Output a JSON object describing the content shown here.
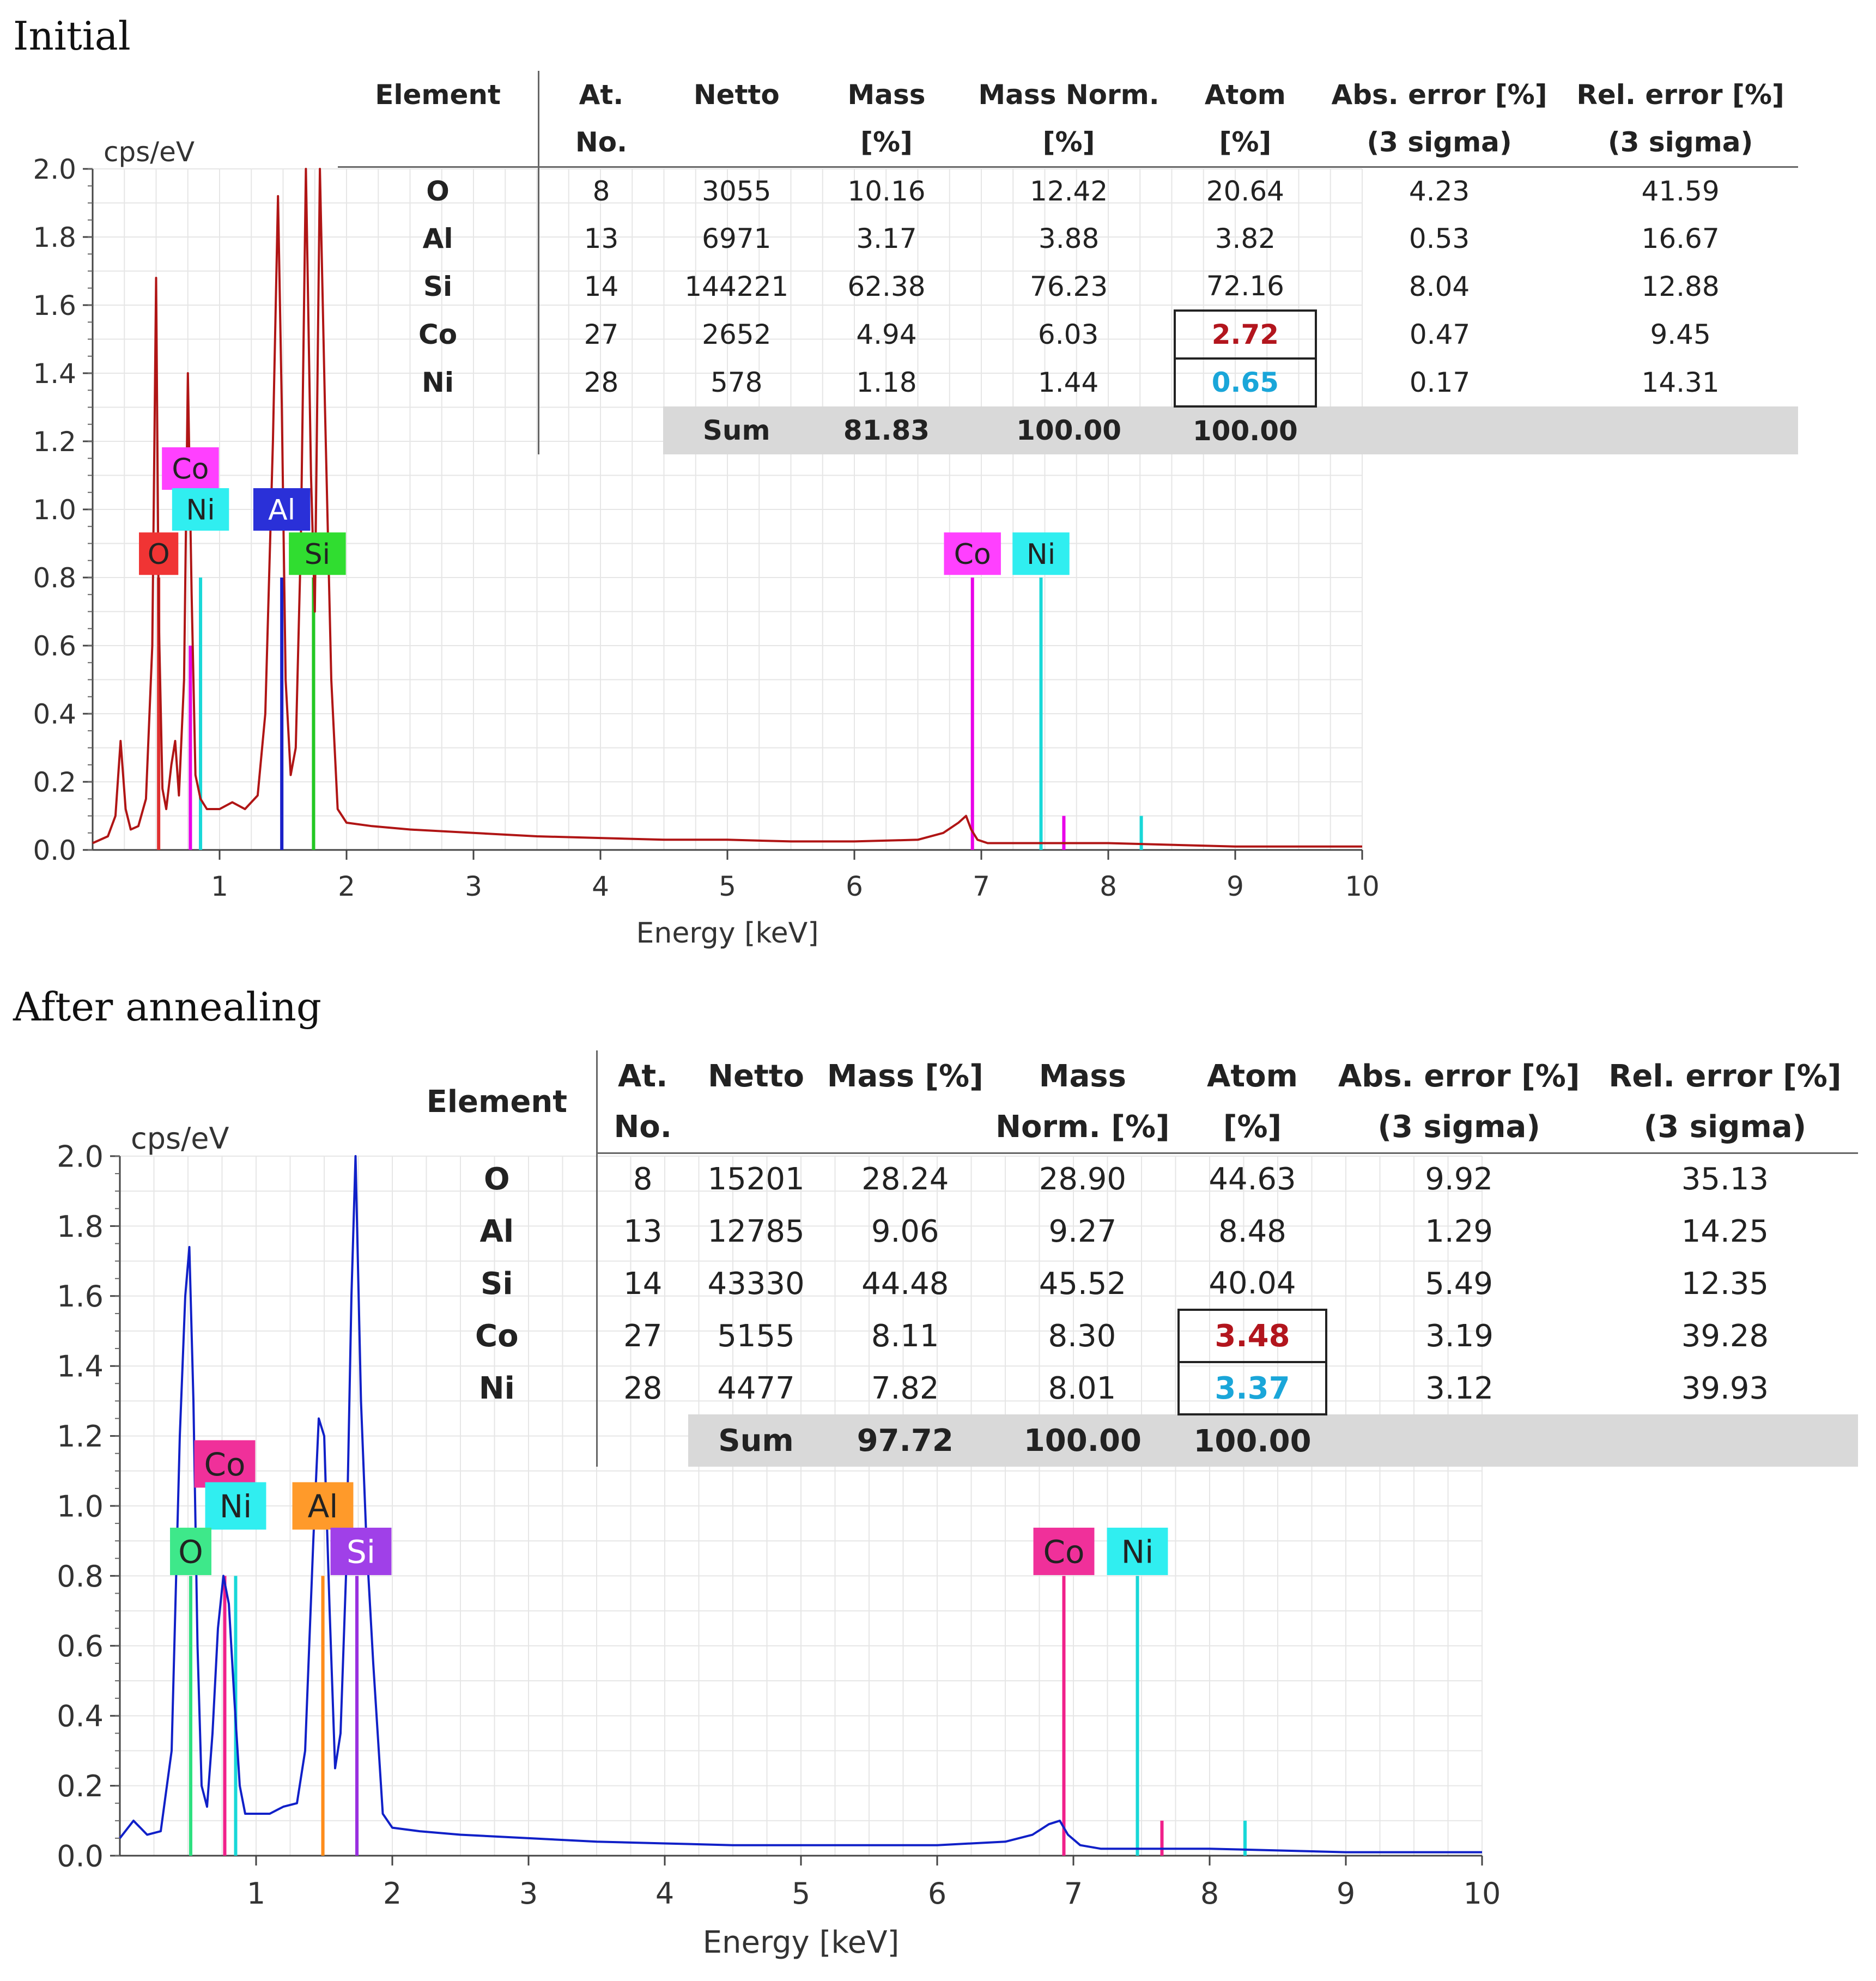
{
  "colors": {
    "atom_co_highlight": "#b2151d",
    "atom_ni_highlight": "#1aa6d9",
    "initial_spectrum": "#b01515",
    "annealed_spectrum": "#1020c8"
  },
  "panels": [
    {
      "title": "Initial",
      "table": {
        "headers": {
          "element": "Element",
          "atno": [
            "At.",
            "No."
          ],
          "netto": "Netto",
          "mass": [
            "Mass",
            "[%]"
          ],
          "massnorm": [
            "Mass Norm.",
            "[%]"
          ],
          "atom": [
            "Atom",
            "[%]"
          ],
          "abserr": [
            "Abs. error [%]",
            "(3 sigma)"
          ],
          "relerr": [
            "Rel. error [%]",
            "(3 sigma)"
          ]
        },
        "rows": [
          {
            "element": "O",
            "atno": "8",
            "netto": "3055",
            "mass": "10.16",
            "massnorm": "12.42",
            "atom": "20.64",
            "abserr": "4.23",
            "relerr": "41.59"
          },
          {
            "element": "Al",
            "atno": "13",
            "netto": "6971",
            "mass": "3.17",
            "massnorm": "3.88",
            "atom": "3.82",
            "abserr": "0.53",
            "relerr": "16.67"
          },
          {
            "element": "Si",
            "atno": "14",
            "netto": "144221",
            "mass": "62.38",
            "massnorm": "76.23",
            "atom": "72.16",
            "abserr": "8.04",
            "relerr": "12.88"
          },
          {
            "element": "Co",
            "atno": "27",
            "netto": "2652",
            "mass": "4.94",
            "massnorm": "6.03",
            "atom": "2.72",
            "abserr": "0.47",
            "relerr": "9.45"
          },
          {
            "element": "Ni",
            "atno": "28",
            "netto": "578",
            "mass": "1.18",
            "massnorm": "1.44",
            "atom": "0.65",
            "abserr": "0.17",
            "relerr": "14.31"
          }
        ],
        "sum": {
          "label": "Sum",
          "mass": "81.83",
          "massnorm": "100.00",
          "atom": "100.00"
        }
      }
    },
    {
      "title": "After annealing",
      "table": {
        "headers": {
          "element": "Element",
          "atno": [
            "At.",
            "No."
          ],
          "netto": "Netto",
          "mass": [
            "Mass [%]",
            ""
          ],
          "massnorm": [
            "Mass",
            "Norm. [%]"
          ],
          "atom": [
            "Atom",
            "[%]"
          ],
          "abserr": [
            "Abs. error [%]",
            "(3 sigma)"
          ],
          "relerr": [
            "Rel. error [%]",
            "(3 sigma)"
          ]
        },
        "rows": [
          {
            "element": "O",
            "atno": "8",
            "netto": "15201",
            "mass": "28.24",
            "massnorm": "28.90",
            "atom": "44.63",
            "abserr": "9.92",
            "relerr": "35.13"
          },
          {
            "element": "Al",
            "atno": "13",
            "netto": "12785",
            "mass": "9.06",
            "massnorm": "9.27",
            "atom": "8.48",
            "abserr": "1.29",
            "relerr": "14.25"
          },
          {
            "element": "Si",
            "atno": "14",
            "netto": "43330",
            "mass": "44.48",
            "massnorm": "45.52",
            "atom": "40.04",
            "abserr": "5.49",
            "relerr": "12.35"
          },
          {
            "element": "Co",
            "atno": "27",
            "netto": "5155",
            "mass": "8.11",
            "massnorm": "8.30",
            "atom": "3.48",
            "abserr": "3.19",
            "relerr": "39.28"
          },
          {
            "element": "Ni",
            "atno": "28",
            "netto": "4477",
            "mass": "7.82",
            "massnorm": "8.01",
            "atom": "3.37",
            "abserr": "3.12",
            "relerr": "39.93"
          }
        ],
        "sum": {
          "label": "Sum",
          "mass": "97.72",
          "massnorm": "100.00",
          "atom": "100.00"
        }
      }
    }
  ],
  "chart_data": [
    {
      "type": "line",
      "title": "Initial",
      "xlabel": "Energy [keV]",
      "ylabel": "cps/eV",
      "xlim": [
        0,
        10
      ],
      "ylim": [
        0,
        2.0
      ],
      "xticks": [
        1,
        2,
        3,
        4,
        5,
        6,
        7,
        8,
        9,
        10
      ],
      "yticks": [
        "0.0",
        "0.2",
        "0.4",
        "0.6",
        "0.8",
        "1.0",
        "1.2",
        "1.4",
        "1.6",
        "1.8",
        "2.0"
      ],
      "grid": true,
      "series": [
        {
          "name": "spectrum",
          "color": "#b01515",
          "x": [
            0.0,
            0.12,
            0.18,
            0.22,
            0.26,
            0.3,
            0.36,
            0.42,
            0.47,
            0.5,
            0.52,
            0.55,
            0.58,
            0.62,
            0.65,
            0.68,
            0.72,
            0.75,
            0.78,
            0.81,
            0.85,
            0.9,
            0.95,
            1.0,
            1.1,
            1.2,
            1.3,
            1.36,
            1.42,
            1.46,
            1.49,
            1.52,
            1.56,
            1.6,
            1.64,
            1.68,
            1.72,
            1.75,
            1.79,
            1.83,
            1.88,
            1.93,
            2.0,
            2.2,
            2.5,
            3.0,
            3.5,
            4.0,
            4.5,
            5.0,
            5.5,
            6.0,
            6.5,
            6.7,
            6.82,
            6.88,
            6.92,
            6.97,
            7.05,
            7.2,
            7.6,
            8.0,
            9.0,
            10.0
          ],
          "y": [
            0.02,
            0.04,
            0.1,
            0.32,
            0.12,
            0.06,
            0.07,
            0.15,
            0.6,
            1.68,
            0.7,
            0.18,
            0.12,
            0.25,
            0.32,
            0.16,
            0.5,
            1.4,
            0.75,
            0.22,
            0.15,
            0.12,
            0.12,
            0.12,
            0.14,
            0.12,
            0.16,
            0.4,
            1.2,
            1.92,
            1.3,
            0.5,
            0.22,
            0.3,
            0.9,
            2.0,
            1.1,
            0.7,
            2.0,
            1.3,
            0.5,
            0.12,
            0.08,
            0.07,
            0.06,
            0.05,
            0.04,
            0.035,
            0.03,
            0.03,
            0.025,
            0.025,
            0.03,
            0.05,
            0.08,
            0.1,
            0.06,
            0.03,
            0.02,
            0.02,
            0.02,
            0.02,
            0.01,
            0.01
          ]
        },
        {
          "name": "O",
          "color": "#e03030",
          "lines": [
            [
              0.52,
              0.8
            ]
          ]
        },
        {
          "name": "Co",
          "color": "#e800e8",
          "lines": [
            [
              0.77,
              0.6
            ],
            [
              6.93,
              0.8
            ],
            [
              7.65,
              0.1
            ]
          ]
        },
        {
          "name": "Ni",
          "color": "#18d8d8",
          "lines": [
            [
              0.85,
              0.8
            ],
            [
              7.47,
              0.8
            ],
            [
              8.26,
              0.1
            ]
          ]
        },
        {
          "name": "Al",
          "color": "#1a20c8",
          "lines": [
            [
              1.49,
              0.8
            ]
          ]
        },
        {
          "name": "Si",
          "color": "#24c824",
          "lines": [
            [
              1.74,
              0.8
            ]
          ]
        }
      ],
      "labels": [
        {
          "text": "Co",
          "x": 0.77,
          "y": 1.12,
          "color": "#ff40ff",
          "ink": "#222"
        },
        {
          "text": "Ni",
          "x": 0.85,
          "y": 1.0,
          "color": "#30eef0",
          "ink": "#222"
        },
        {
          "text": "O",
          "x": 0.52,
          "y": 0.87,
          "color": "#f03434",
          "ink": "#222"
        },
        {
          "text": "Al",
          "x": 1.49,
          "y": 1.0,
          "color": "#2a30d8",
          "ink": "#ffffff"
        },
        {
          "text": "Si",
          "x": 1.77,
          "y": 0.87,
          "color": "#30dd30",
          "ink": "#222"
        },
        {
          "text": "Co",
          "x": 6.93,
          "y": 0.87,
          "color": "#ff40ff",
          "ink": "#222"
        },
        {
          "text": "Ni",
          "x": 7.47,
          "y": 0.87,
          "color": "#30eef0",
          "ink": "#222"
        }
      ]
    },
    {
      "type": "line",
      "title": "After annealing",
      "xlabel": "Energy [keV]",
      "ylabel": "cps/eV",
      "xlim": [
        0,
        10
      ],
      "ylim": [
        0,
        2.0
      ],
      "xticks": [
        1,
        2,
        3,
        4,
        5,
        6,
        7,
        8,
        9,
        10
      ],
      "yticks": [
        "0.0",
        "0.2",
        "0.4",
        "0.6",
        "0.8",
        "1.0",
        "1.2",
        "1.4",
        "1.6",
        "1.8",
        "2.0"
      ],
      "grid": true,
      "series": [
        {
          "name": "spectrum",
          "color": "#1020c8",
          "x": [
            0.0,
            0.1,
            0.2,
            0.3,
            0.38,
            0.44,
            0.48,
            0.51,
            0.54,
            0.57,
            0.6,
            0.64,
            0.68,
            0.72,
            0.76,
            0.8,
            0.84,
            0.88,
            0.92,
            1.0,
            1.1,
            1.2,
            1.3,
            1.36,
            1.42,
            1.46,
            1.5,
            1.54,
            1.58,
            1.62,
            1.66,
            1.7,
            1.73,
            1.77,
            1.81,
            1.86,
            1.93,
            2.0,
            2.2,
            2.5,
            3.0,
            3.5,
            4.0,
            4.5,
            5.0,
            5.5,
            6.0,
            6.5,
            6.7,
            6.82,
            6.9,
            6.96,
            7.05,
            7.2,
            7.6,
            8.0,
            9.0,
            10.0
          ],
          "y": [
            0.05,
            0.1,
            0.06,
            0.07,
            0.3,
            1.2,
            1.6,
            1.74,
            1.3,
            0.6,
            0.2,
            0.14,
            0.35,
            0.65,
            0.8,
            0.72,
            0.45,
            0.2,
            0.12,
            0.12,
            0.12,
            0.14,
            0.15,
            0.3,
            0.9,
            1.25,
            1.2,
            0.7,
            0.25,
            0.35,
            0.8,
            1.6,
            2.0,
            1.3,
            0.9,
            0.55,
            0.12,
            0.08,
            0.07,
            0.06,
            0.05,
            0.04,
            0.035,
            0.03,
            0.03,
            0.03,
            0.03,
            0.04,
            0.06,
            0.09,
            0.1,
            0.06,
            0.03,
            0.02,
            0.02,
            0.02,
            0.01,
            0.01
          ]
        },
        {
          "name": "O",
          "color": "#2ee080",
          "lines": [
            [
              0.52,
              0.8
            ]
          ]
        },
        {
          "name": "Co",
          "color": "#f0208a",
          "lines": [
            [
              0.77,
              0.8
            ],
            [
              6.93,
              0.8
            ],
            [
              7.65,
              0.1
            ]
          ]
        },
        {
          "name": "Ni",
          "color": "#18d8d8",
          "lines": [
            [
              0.85,
              0.8
            ],
            [
              7.47,
              0.8
            ],
            [
              8.26,
              0.1
            ]
          ]
        },
        {
          "name": "Al",
          "color": "#ff8c1a",
          "lines": [
            [
              1.49,
              0.8
            ]
          ]
        },
        {
          "name": "Si",
          "color": "#9a30e0",
          "lines": [
            [
              1.74,
              0.8
            ]
          ]
        }
      ],
      "labels": [
        {
          "text": "Co",
          "x": 0.77,
          "y": 1.12,
          "color": "#f0309a",
          "ink": "#222"
        },
        {
          "text": "Ni",
          "x": 0.85,
          "y": 1.0,
          "color": "#30eef0",
          "ink": "#222"
        },
        {
          "text": "O",
          "x": 0.52,
          "y": 0.87,
          "color": "#3ee88a",
          "ink": "#222"
        },
        {
          "text": "Al",
          "x": 1.49,
          "y": 1.0,
          "color": "#ff9a2a",
          "ink": "#222"
        },
        {
          "text": "Si",
          "x": 1.77,
          "y": 0.87,
          "color": "#a040e8",
          "ink": "#ffffff"
        },
        {
          "text": "Co",
          "x": 6.93,
          "y": 0.87,
          "color": "#f0309a",
          "ink": "#222"
        },
        {
          "text": "Ni",
          "x": 7.47,
          "y": 0.87,
          "color": "#30eef0",
          "ink": "#222"
        }
      ]
    }
  ]
}
